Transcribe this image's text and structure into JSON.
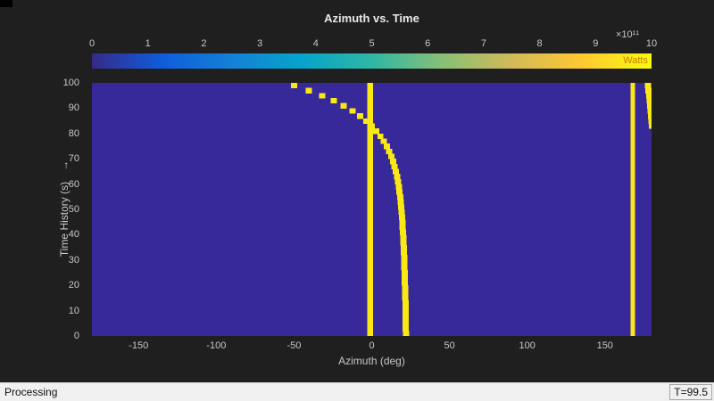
{
  "title": "Azimuth vs. Time",
  "colorbar": {
    "exponent_label": "×10¹¹",
    "units_label": "Watts",
    "ticks": [
      "0",
      "1",
      "2",
      "3",
      "4",
      "5",
      "6",
      "7",
      "8",
      "9",
      "10"
    ],
    "gradient": [
      "#352a87",
      "#0f5cdd",
      "#1481d6",
      "#06a4ca",
      "#2eb7a4",
      "#87bf77",
      "#d1bb59",
      "#fec832",
      "#f9fb0e"
    ]
  },
  "axes": {
    "xlabel": "Azimuth (deg)",
    "ylabel": "Time History (s)",
    "ylabel_arrow": "→"
  },
  "statusbar": {
    "left_text": "Processing",
    "right_text": "T=99.5"
  },
  "colors": {
    "figure_bg": "#1f1f1f",
    "plot_bg": "#38299b",
    "statusbar_bg": "#f0f0f0"
  },
  "chart_data": {
    "type": "heatmap",
    "title": "Azimuth vs. Time",
    "xlabel": "Azimuth (deg)",
    "ylabel": "Time History (s)",
    "xlim": [
      -180,
      180
    ],
    "ylim": [
      0,
      100
    ],
    "xticks": [
      -150,
      -100,
      -50,
      0,
      50,
      100,
      150
    ],
    "yticks": [
      0,
      10,
      20,
      30,
      40,
      50,
      60,
      70,
      80,
      90,
      100
    ],
    "colorbar_units": "Watts",
    "colorbar_tick_values_x1e11": [
      0,
      1,
      2,
      3,
      4,
      5,
      6,
      7,
      8,
      9,
      10
    ],
    "colorbar_range_watts": [
      0,
      1000000000000
    ],
    "grid": false,
    "background_color": "#38299b",
    "track_color": "#f9e814",
    "tracks": [
      {
        "name": "stationary-emitter-near-0deg",
        "type": "vertical-line",
        "azimuth_deg": -1,
        "time_range": [
          0,
          100
        ],
        "width_deg": 4
      },
      {
        "name": "moving-emitter-bearing-curve",
        "type": "curve",
        "width_deg": 4,
        "points": [
          [
            0,
            22
          ],
          [
            10,
            21.8
          ],
          [
            20,
            21.4
          ],
          [
            30,
            20.9
          ],
          [
            40,
            20.2
          ],
          [
            50,
            19.2
          ],
          [
            55,
            18.4
          ],
          [
            60,
            17.2
          ],
          [
            65,
            15.6
          ],
          [
            70,
            13.2
          ],
          [
            75,
            9.8
          ],
          [
            78,
            6.8
          ],
          [
            80,
            4.4
          ],
          [
            82,
            1.6
          ],
          [
            84,
            -1.6
          ],
          [
            86,
            -5.4
          ],
          [
            88,
            -9.8
          ],
          [
            90,
            -15
          ],
          [
            92,
            -21
          ],
          [
            94,
            -28
          ],
          [
            96,
            -36
          ],
          [
            98,
            -45
          ],
          [
            100,
            -55
          ]
        ]
      },
      {
        "name": "stationary-emitter-near-168deg",
        "type": "vertical-line",
        "azimuth_deg": 168,
        "time_range": [
          0,
          100
        ],
        "width_deg": 3
      },
      {
        "name": "edge-emitter-curve",
        "type": "curve",
        "width_deg": 4,
        "points": [
          [
            82,
            180.5
          ],
          [
            86,
            179.8
          ],
          [
            90,
            179.2
          ],
          [
            94,
            178.6
          ],
          [
            100,
            177.6
          ]
        ]
      }
    ]
  }
}
